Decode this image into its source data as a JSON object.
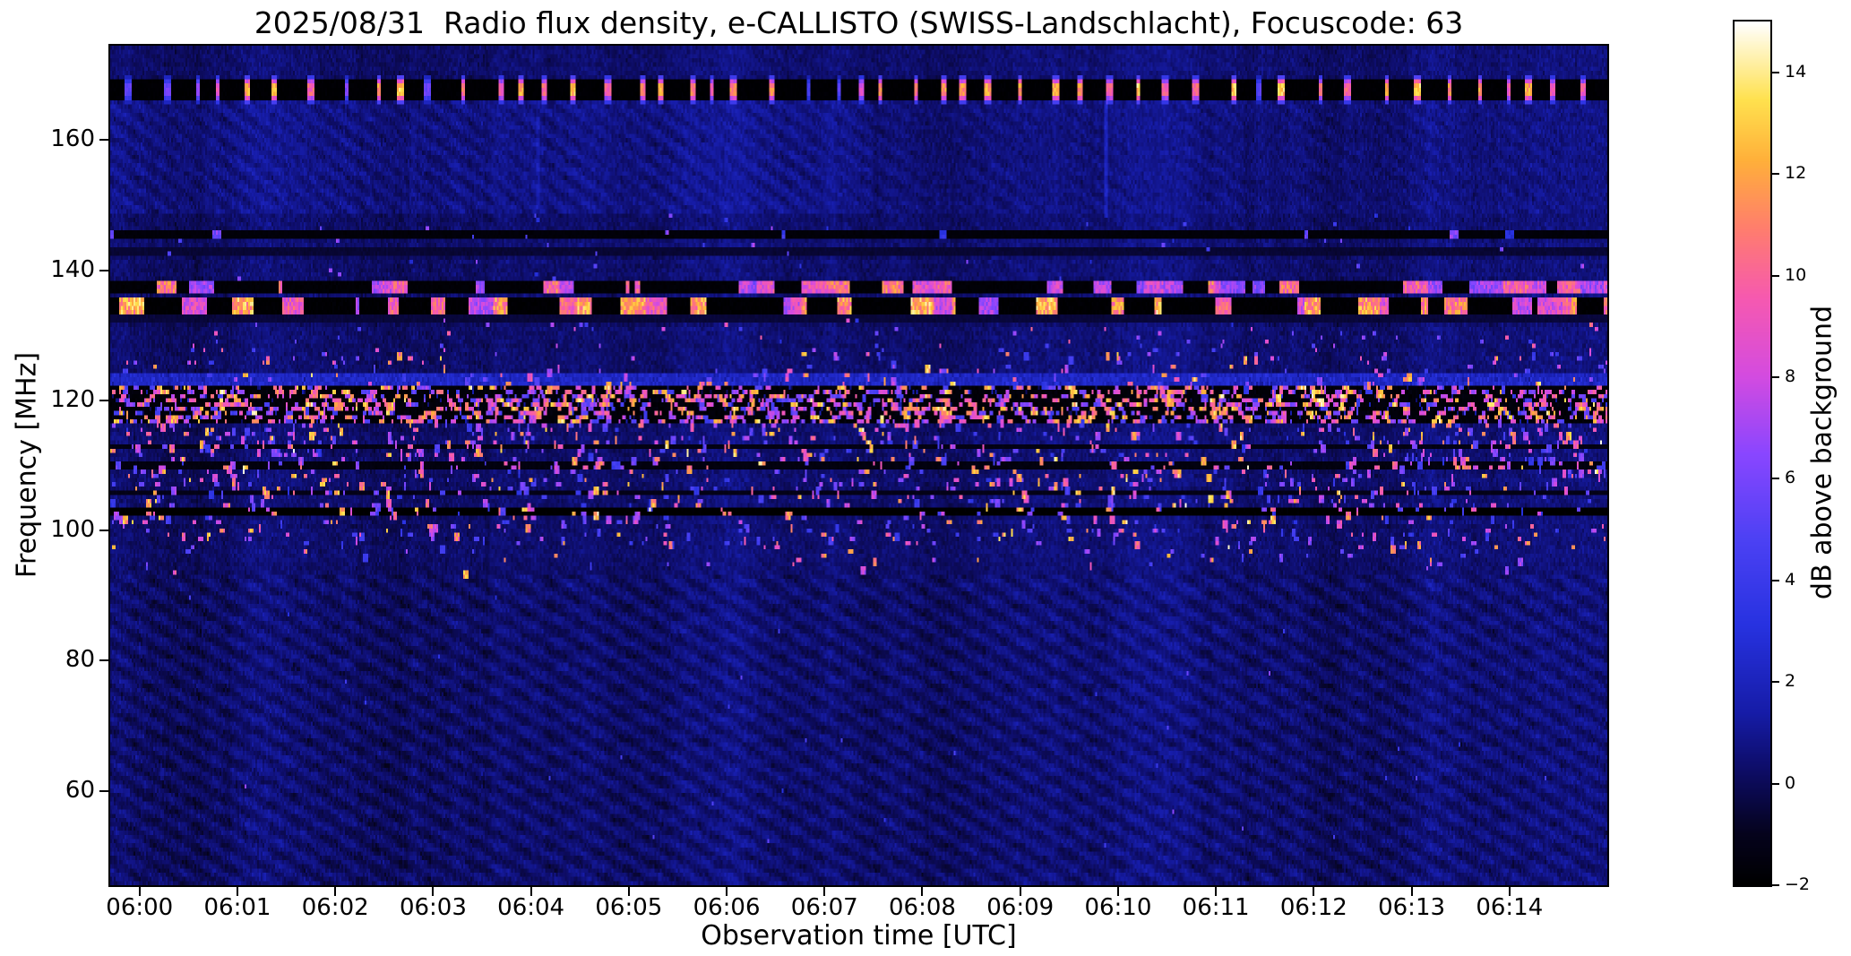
{
  "chart_data": {
    "type": "heatmap",
    "title": "2025/08/31  Radio flux density, e-CALLISTO (SWISS-Landschlacht), Focuscode: 63",
    "xlabel": "Observation time [UTC]",
    "ylabel": "Frequency [MHz]",
    "colorbar_label": "dB above background",
    "x_tick_labels": [
      "06:00",
      "06:01",
      "06:02",
      "06:03",
      "06:04",
      "06:05",
      "06:06",
      "06:07",
      "06:08",
      "06:09",
      "06:10",
      "06:11",
      "06:12",
      "06:13",
      "06:14"
    ],
    "x_tick_minutes": [
      0,
      1,
      2,
      3,
      4,
      5,
      6,
      7,
      8,
      9,
      10,
      11,
      12,
      13,
      14
    ],
    "x_axis_span_minutes": [
      -0.3,
      15.0
    ],
    "y_tick_values": [
      160,
      140,
      120,
      100,
      80,
      60
    ],
    "y_tick_labels": [
      "160",
      "140",
      "120",
      "100",
      "80",
      "60"
    ],
    "ylim": [
      45.5,
      174.5
    ],
    "clim": [
      -2,
      15
    ],
    "colorbar_tick_values": [
      14,
      12,
      10,
      8,
      6,
      4,
      2,
      0,
      -2
    ],
    "colorbar_tick_labels": [
      "14",
      "12",
      "10",
      "8",
      "6",
      "4",
      "2",
      "0",
      "−2"
    ],
    "background_db": 0.35,
    "colormap": [
      {
        "t": 0.0,
        "c": "#000000"
      },
      {
        "t": 0.06,
        "c": "#05031e"
      },
      {
        "t": 0.13,
        "c": "#0d0c64"
      },
      {
        "t": 0.2,
        "c": "#161ca8"
      },
      {
        "t": 0.3,
        "c": "#2732e0"
      },
      {
        "t": 0.4,
        "c": "#4c41f4"
      },
      {
        "t": 0.5,
        "c": "#8a46ff"
      },
      {
        "t": 0.59,
        "c": "#d44be0"
      },
      {
        "t": 0.68,
        "c": "#f659b0"
      },
      {
        "t": 0.76,
        "c": "#ff7d6e"
      },
      {
        "t": 0.84,
        "c": "#ffb03a"
      },
      {
        "t": 0.91,
        "c": "#ffe14e"
      },
      {
        "t": 1.0,
        "c": "#ffffff"
      }
    ],
    "features": {
      "pulsed_band": {
        "f_lo": 166.9,
        "f_hi": 169.4,
        "peak_db": 15,
        "floor_db": -1.9
      },
      "dashed_bands": [
        {
          "f_lo": 134.1,
          "f_hi": 136.1,
          "peak_db": 15,
          "floor_db": -1.9
        },
        {
          "f_lo": 137.2,
          "f_hi": 138.3,
          "peak_db": 13,
          "floor_db": -1.8
        }
      ],
      "intermittent_band": {
        "f_lo": 145.7,
        "f_hi": 146.4,
        "peak_db": 8,
        "floor_db": -1.7
      },
      "dark_rows": [
        {
          "f_lo": 102.7,
          "f_hi": 103.4,
          "db": -2.0
        },
        {
          "f_lo": 109.9,
          "f_hi": 110.5,
          "db": -1.5
        },
        {
          "f_lo": 113.0,
          "f_hi": 113.5,
          "db": -1.3
        },
        {
          "f_lo": 105.9,
          "f_hi": 106.4,
          "db": -1.2
        },
        {
          "f_lo": 143.2,
          "f_hi": 143.8,
          "db": -0.6
        },
        {
          "f_lo": 132.3,
          "f_hi": 132.9,
          "db": -0.5
        }
      ],
      "dark_speckled_band": {
        "f_lo": 116.8,
        "f_hi": 122.4,
        "floor_db": -1.7,
        "peak_db": 15
      },
      "steady_band": {
        "f_lo": 122.6,
        "f_hi": 124.3,
        "db": 2.2
      },
      "speckle_band": {
        "f_lo": 94.0,
        "f_hi": 128.0,
        "peak_db": 15,
        "count": 3200
      },
      "stripe_texture_below_mhz": 93,
      "upper_texture_range": [
        149,
        166
      ]
    },
    "render_hints": {
      "streaks": [
        {
          "minute": 9.85,
          "f_lo": 149,
          "f_hi": 166,
          "db_boost": 1.4
        },
        {
          "minute": 4.05,
          "f_lo": 150,
          "f_hi": 164,
          "db_boost": 0.7
        }
      ]
    }
  }
}
